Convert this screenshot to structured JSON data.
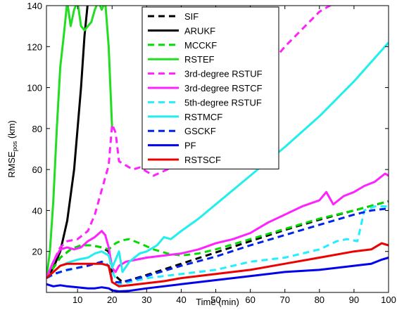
{
  "chart_data": {
    "type": "line",
    "xlabel": "Time (min)",
    "ylabel": "RMSE",
    "ylabel_subscript": "pos",
    "ylabel_unit": " (km)",
    "xlim": [
      1,
      100
    ],
    "ylim": [
      0,
      140
    ],
    "xticks": [
      10,
      20,
      30,
      40,
      50,
      60,
      70,
      80,
      90,
      100
    ],
    "yticks": [
      20,
      40,
      60,
      80,
      100,
      120,
      140
    ],
    "grid": false,
    "legend_position": "top-center",
    "series": [
      {
        "name": "SIF",
        "color": "#000000",
        "dash": "dashed",
        "x": [
          1,
          3,
          5,
          8,
          11,
          14,
          17,
          19,
          20,
          21,
          23,
          30,
          40,
          50,
          60,
          70,
          80,
          90,
          100
        ],
        "y": [
          7,
          12,
          17,
          21,
          23,
          23,
          22,
          20,
          10,
          8,
          5,
          8.5,
          14,
          19.5,
          25,
          30.5,
          35.5,
          40,
          44.5
        ]
      },
      {
        "name": "ARUKF",
        "color": "#000000",
        "dash": "solid",
        "x": [
          1,
          3,
          5,
          7,
          9,
          11,
          12,
          13
        ],
        "y": [
          7,
          12,
          20,
          35,
          60,
          100,
          125,
          142
        ]
      },
      {
        "name": "MCCKF",
        "color": "#00dd00",
        "dash": "dashed",
        "x": [
          1,
          3,
          5,
          8,
          11,
          14,
          17,
          19,
          21,
          23,
          25,
          28,
          32,
          36,
          40,
          45,
          50,
          60,
          70,
          80,
          90,
          100
        ],
        "y": [
          7,
          12,
          17,
          21,
          23,
          23,
          22,
          21,
          24,
          25.5,
          26,
          24,
          21,
          19,
          18,
          19,
          21,
          26,
          31,
          36,
          40,
          44.5
        ]
      },
      {
        "name": "RSTEF",
        "color": "#22dd22",
        "dash": "solid",
        "x": [
          1,
          2,
          3,
          4,
          5,
          6,
          7,
          8,
          9,
          10,
          11,
          12,
          13,
          14,
          15,
          16,
          17,
          18,
          19,
          20
        ],
        "y": [
          7,
          20,
          45,
          80,
          110,
          125,
          142,
          130,
          138,
          142,
          130,
          128,
          130,
          132,
          138,
          142,
          138,
          142,
          120,
          80
        ]
      },
      {
        "name": "3rd-degree RSTUF",
        "color": "#ff22ff",
        "dash": "dashed",
        "x": [
          1,
          3,
          5,
          7,
          10,
          13,
          15,
          17,
          19,
          20,
          21,
          22,
          24,
          26,
          28,
          32,
          36,
          40,
          45,
          50,
          60,
          70,
          80,
          84
        ],
        "y": [
          7,
          15,
          22,
          25,
          26,
          30,
          38,
          50,
          62,
          82,
          78,
          64,
          62,
          60,
          61,
          57,
          60,
          64,
          72,
          80,
          100,
          120,
          137,
          141
        ]
      },
      {
        "name": "3rd-degree RSTCF",
        "color": "#ff22ff",
        "dash": "solid",
        "x": [
          1,
          3,
          5,
          7,
          9,
          11,
          13,
          15,
          17,
          18,
          19,
          20,
          21,
          22,
          24,
          27,
          30,
          35,
          40,
          45,
          50,
          55,
          60,
          65,
          70,
          75,
          80,
          82,
          84,
          87,
          90,
          93,
          96,
          99,
          100
        ],
        "y": [
          7,
          15,
          21,
          22,
          21,
          22,
          25,
          27,
          30,
          28,
          22,
          12,
          10,
          13,
          15,
          16,
          17,
          18,
          19,
          21,
          24,
          26,
          29,
          34,
          38,
          42,
          45,
          49,
          43,
          47,
          49,
          52,
          54,
          58,
          57
        ]
      },
      {
        "name": "5th-degree RSTUF",
        "color": "#22eeff",
        "dash": "dashed",
        "x": [
          1,
          5,
          10,
          15,
          18,
          20,
          22,
          25,
          30,
          35,
          40,
          50,
          60,
          70,
          80,
          85,
          88,
          91,
          93,
          96,
          100
        ],
        "y": [
          7,
          10,
          12,
          14,
          15,
          10,
          4,
          5,
          7,
          8,
          9,
          11,
          15,
          17,
          21,
          25,
          26,
          25,
          40,
          42,
          42
        ]
      },
      {
        "name": "RSTMCF",
        "color": "#22eeee",
        "dash": "solid",
        "x": [
          1,
          3,
          5,
          8,
          10,
          13,
          15,
          17,
          19,
          20,
          21,
          22,
          23,
          25,
          28,
          30,
          33,
          35,
          37,
          40,
          45,
          50,
          60,
          70,
          80,
          90,
          100
        ],
        "y": [
          7,
          10,
          13,
          15,
          16,
          17,
          19,
          20,
          18,
          12,
          16,
          20,
          10,
          15,
          19,
          20,
          23,
          27,
          26,
          30,
          36,
          43,
          57,
          71,
          86,
          103,
          122
        ]
      },
      {
        "name": "GSCKF",
        "color": "#0022ee",
        "dash": "dashed",
        "x": [
          1,
          3,
          5,
          7,
          10,
          13,
          15,
          17,
          19,
          20,
          21,
          23,
          30,
          40,
          50,
          60,
          70,
          80,
          90,
          95,
          100
        ],
        "y": [
          7,
          9,
          10,
          11,
          12,
          13,
          14,
          15,
          13,
          6,
          5,
          5,
          8,
          13,
          17.5,
          23,
          28,
          33,
          38,
          40,
          41
        ]
      },
      {
        "name": "PF",
        "color": "#0000ee",
        "dash": "solid",
        "x": [
          1,
          3,
          5,
          7,
          10,
          13,
          15,
          17,
          19,
          20,
          22,
          25,
          30,
          40,
          50,
          60,
          70,
          80,
          90,
          95,
          98,
          100
        ],
        "y": [
          4,
          3,
          3.5,
          3,
          2.5,
          2,
          2,
          2.5,
          2,
          1,
          0.5,
          0.8,
          2,
          4,
          6,
          8,
          10,
          11,
          13,
          14,
          16,
          17
        ]
      },
      {
        "name": "RSTSCF",
        "color": "#ee0000",
        "dash": "solid",
        "x": [
          1,
          3,
          5,
          7,
          10,
          13,
          15,
          17,
          19,
          20,
          22,
          25,
          30,
          35,
          40,
          50,
          60,
          70,
          80,
          90,
          95,
          98,
          100
        ],
        "y": [
          7,
          10,
          13,
          14,
          14,
          14,
          14,
          14,
          13,
          5,
          3,
          3.5,
          4.5,
          5.5,
          7,
          9,
          11,
          14,
          17,
          20,
          21,
          24,
          23
        ]
      }
    ]
  }
}
